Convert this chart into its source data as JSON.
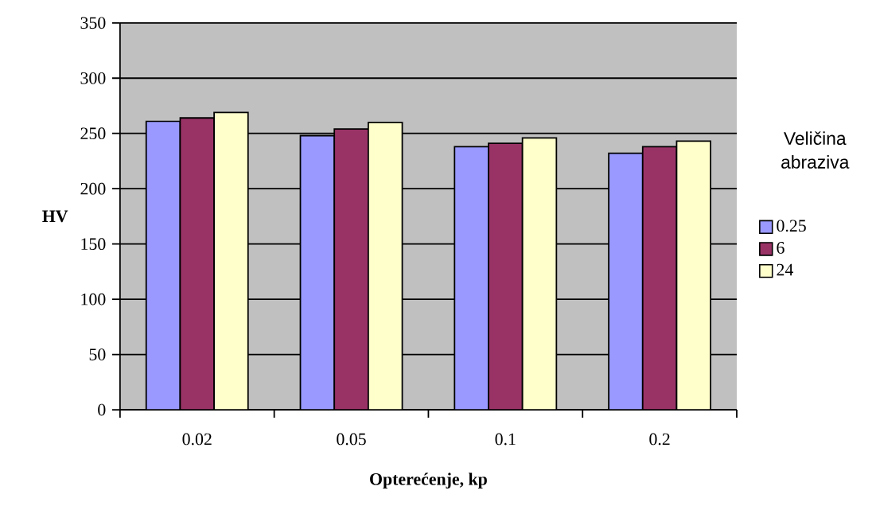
{
  "chart_data": {
    "type": "bar",
    "xlabel": "Opterećenje, kp",
    "ylabel": "HV",
    "legend_title": "Veličina abraziva",
    "categories": [
      "0.02",
      "0.05",
      "0.1",
      "0.2"
    ],
    "series": [
      {
        "name": "0.25",
        "color": "#9999ff",
        "values": [
          261,
          248,
          238,
          232
        ]
      },
      {
        "name": "6",
        "color": "#993366",
        "values": [
          264,
          254,
          241,
          238
        ]
      },
      {
        "name": "24",
        "color": "#ffffcc",
        "values": [
          269,
          260,
          246,
          243
        ]
      }
    ],
    "ylim": [
      0,
      350
    ],
    "yticks": [
      0,
      50,
      100,
      150,
      200,
      250,
      300,
      350
    ],
    "grid": "y",
    "legend": "right"
  }
}
